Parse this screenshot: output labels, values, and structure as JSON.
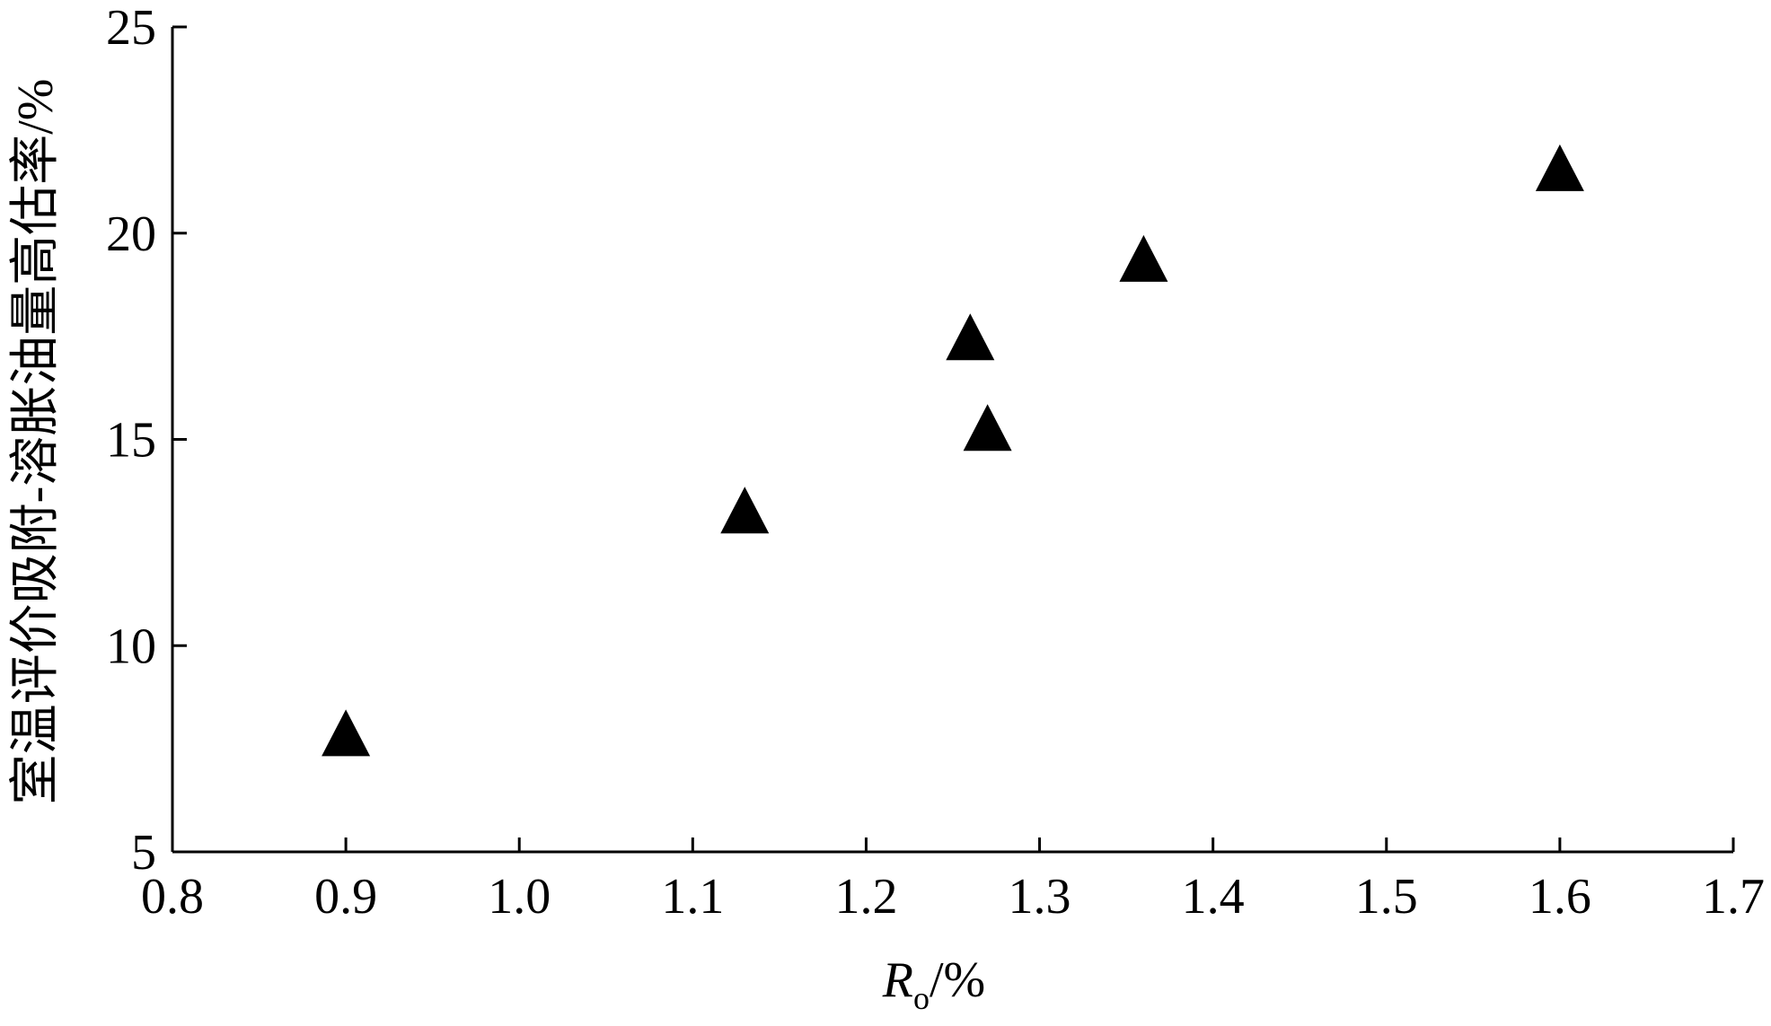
{
  "chart_data": {
    "type": "scatter",
    "marker": "triangle",
    "marker_color": "#000000",
    "xlabel": {
      "main": "R",
      "subscript": "o",
      "suffix": "/%"
    },
    "ylabel": "室温评价吸附-溶胀油量高估率/%",
    "xlim": [
      0.8,
      1.7
    ],
    "ylim": [
      5,
      25
    ],
    "x_ticks": [
      "0.8",
      "0.9",
      "1.0",
      "1.1",
      "1.2",
      "1.3",
      "1.4",
      "1.5",
      "1.6",
      "1.7"
    ],
    "y_ticks": [
      "5",
      "10",
      "15",
      "20",
      "25"
    ],
    "grid": false,
    "legend": "none",
    "points": [
      {
        "x": 0.9,
        "y": 7.8
      },
      {
        "x": 1.13,
        "y": 13.2
      },
      {
        "x": 1.26,
        "y": 17.4
      },
      {
        "x": 1.27,
        "y": 15.2
      },
      {
        "x": 1.36,
        "y": 19.3
      },
      {
        "x": 1.6,
        "y": 21.5
      }
    ]
  }
}
